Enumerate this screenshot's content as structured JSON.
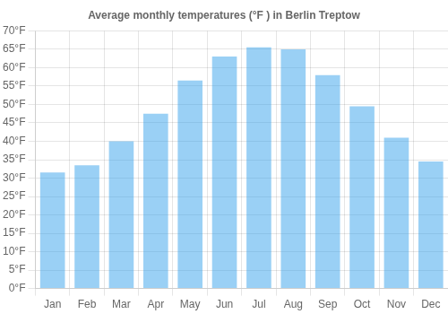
{
  "chart_data": {
    "type": "bar",
    "title": "Average monthly temperatures (°F ) in Berlin Treptow",
    "categories": [
      "Jan",
      "Feb",
      "Mar",
      "Apr",
      "May",
      "Jun",
      "Jul",
      "Aug",
      "Sep",
      "Oct",
      "Nov",
      "Dec"
    ],
    "values": [
      31.5,
      33.5,
      40.0,
      47.5,
      56.5,
      63.0,
      65.5,
      65.0,
      58.0,
      49.5,
      41.0,
      34.5
    ],
    "ylim": [
      0,
      70
    ],
    "yticks": [
      {
        "value": 0,
        "label": "0°F"
      },
      {
        "value": 5,
        "label": "5°F"
      },
      {
        "value": 10,
        "label": "10°F"
      },
      {
        "value": 15,
        "label": "15°F"
      },
      {
        "value": 20,
        "label": "20°F"
      },
      {
        "value": 25,
        "label": "25°F"
      },
      {
        "value": 30,
        "label": "30°F"
      },
      {
        "value": 35,
        "label": "35°F"
      },
      {
        "value": 40,
        "label": "40°F"
      },
      {
        "value": 45,
        "label": "45°F"
      },
      {
        "value": 50,
        "label": "50°F"
      },
      {
        "value": 55,
        "label": "55°F"
      },
      {
        "value": 60,
        "label": "60°F"
      },
      {
        "value": 65,
        "label": "65°F"
      },
      {
        "value": 70,
        "label": "70°F"
      }
    ],
    "grid": true
  }
}
